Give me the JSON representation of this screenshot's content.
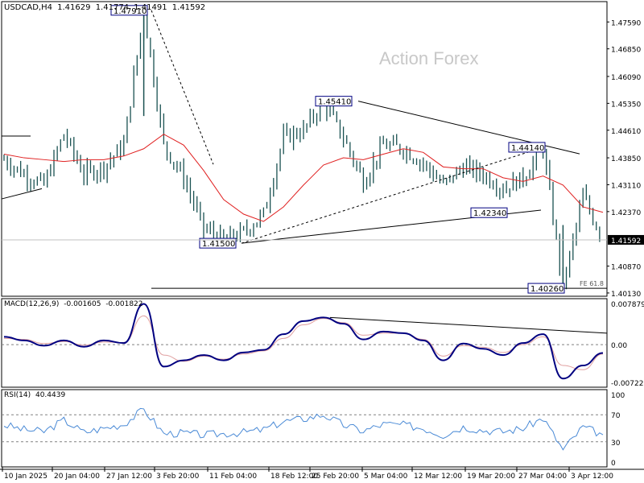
{
  "header": {
    "symbol": "USDCAD,H4",
    "open": "1.41629",
    "high": "1.41774",
    "low": "1.41491",
    "close": "1.41592"
  },
  "watermark": "Action Forex",
  "colors": {
    "price_bar": "#1a5252",
    "ma": "#e02020",
    "macd": "#000080",
    "signal": "#e0a0a0",
    "rsi": "#4a8ad6",
    "trendline": "#000000",
    "label_border": "#000080",
    "price_tag_bg": "#000000",
    "grid_dash": "#808080"
  },
  "chart_data": [
    {
      "type": "line",
      "name": "price",
      "y_ticks": [
        "1.47590",
        "1.46850",
        "1.46090",
        "1.45350",
        "1.44610",
        "1.43850",
        "1.43110",
        "1.42370",
        "1.41592",
        "1.40870",
        "1.40130"
      ],
      "x_ticks": [
        "10 Jan 2025",
        "20 Jan 04:00",
        "27 Jan 12:00",
        "3 Feb 20:00",
        "11 Feb 04:00",
        "18 Feb 12:00",
        "25 Feb 20:00",
        "5 Mar 04:00",
        "12 Mar 12:00",
        "19 Mar 20:00",
        "27 Mar 04:00",
        "3 Apr 12:00"
      ],
      "current_price": "1.41592",
      "ylim": [
        1.4013,
        1.4791
      ],
      "x": [
        "10 Jan 2025",
        "14 Jan",
        "16 Jan",
        "20 Jan 04:00",
        "23 Jan",
        "27 Jan 12:00",
        "30 Jan",
        "3 Feb 00:00",
        "3 Feb 20:00",
        "6 Feb",
        "11 Feb 04:00",
        "13 Feb",
        "18 Feb 12:00",
        "21 Feb",
        "25 Feb 20:00",
        "28 Feb",
        "3 Mar",
        "5 Mar 04:00",
        "7 Mar",
        "10 Mar",
        "12 Mar 12:00",
        "14 Mar",
        "17 Mar",
        "19 Mar 20:00",
        "21 Mar",
        "25 Mar",
        "27 Mar 04:00",
        "31 Mar",
        "2 Apr",
        "3 Apr 12:00",
        "4 Apr"
      ],
      "close": [
        1.438,
        1.434,
        1.431,
        1.445,
        1.434,
        1.436,
        1.442,
        1.479,
        1.442,
        1.433,
        1.419,
        1.416,
        1.418,
        1.423,
        1.444,
        1.446,
        1.454,
        1.444,
        1.432,
        1.442,
        1.441,
        1.437,
        1.431,
        1.436,
        1.434,
        1.43,
        1.433,
        1.441,
        1.403,
        1.428,
        1.4159
      ],
      "ma": [
        1.4395,
        1.4385,
        1.438,
        1.4375,
        1.438,
        1.438,
        1.439,
        1.441,
        1.445,
        1.442,
        1.435,
        1.427,
        1.423,
        1.421,
        1.425,
        1.431,
        1.4365,
        1.4385,
        1.438,
        1.4395,
        1.441,
        1.44,
        1.436,
        1.4355,
        1.4355,
        1.433,
        1.432,
        1.4335,
        1.431,
        1.425,
        1.4235
      ],
      "annotations": [
        {
          "label": "1.47910",
          "value": 1.4791
        },
        {
          "label": "1.45410",
          "value": 1.4541
        },
        {
          "label": "1.44140",
          "value": 1.4414
        },
        {
          "label": "1.42340",
          "value": 1.4234
        },
        {
          "label": "1.41500",
          "value": 1.415
        },
        {
          "label": "1.40260",
          "value": 1.4026
        }
      ],
      "fe_label": "FE 61.8"
    },
    {
      "type": "line",
      "name": "MACD(12,26,9)",
      "title_values": [
        "MACD(12,26,9)",
        "-0.001605",
        "-0.001822"
      ],
      "y_ticks": [
        "0.007879",
        "0.00",
        "-0.007229"
      ],
      "ylim": [
        -0.007229,
        0.007879
      ],
      "macd": [
        0.0015,
        0.0008,
        -0.0002,
        0.0008,
        -0.0004,
        0.0008,
        0.0003,
        0.0078,
        -0.0042,
        -0.003,
        -0.002,
        -0.003,
        -0.0015,
        -0.001,
        0.002,
        0.0045,
        0.0052,
        0.004,
        0.001,
        0.0025,
        0.0022,
        0.0008,
        -0.003,
        0.0002,
        -0.0008,
        -0.002,
        0.0003,
        0.002,
        -0.0065,
        -0.004,
        -0.0016
      ],
      "signal": [
        0.0012,
        0.001,
        0.0002,
        0.0006,
        -0.0001,
        0.0005,
        0.0004,
        0.0055,
        -0.002,
        -0.0032,
        -0.0022,
        -0.0028,
        -0.0018,
        -0.0012,
        0.0012,
        0.0038,
        0.005,
        0.0042,
        0.0018,
        0.0022,
        0.0022,
        0.001,
        -0.0022,
        -0.0002,
        -0.0005,
        -0.0015,
        0.0,
        0.0015,
        -0.004,
        -0.0048,
        -0.0018
      ]
    },
    {
      "type": "line",
      "name": "RSI(14)",
      "title_values": [
        "RSI(14)",
        "40.4439"
      ],
      "y_ticks": [
        "100",
        "70",
        "30",
        "0"
      ],
      "ylim": [
        0,
        100
      ],
      "rsi": [
        55,
        48,
        45,
        62,
        44,
        50,
        56,
        78,
        42,
        43,
        40,
        42,
        44,
        48,
        60,
        64,
        70,
        55,
        46,
        56,
        55,
        50,
        40,
        52,
        47,
        45,
        50,
        65,
        18,
        52,
        40.4
      ]
    }
  ]
}
